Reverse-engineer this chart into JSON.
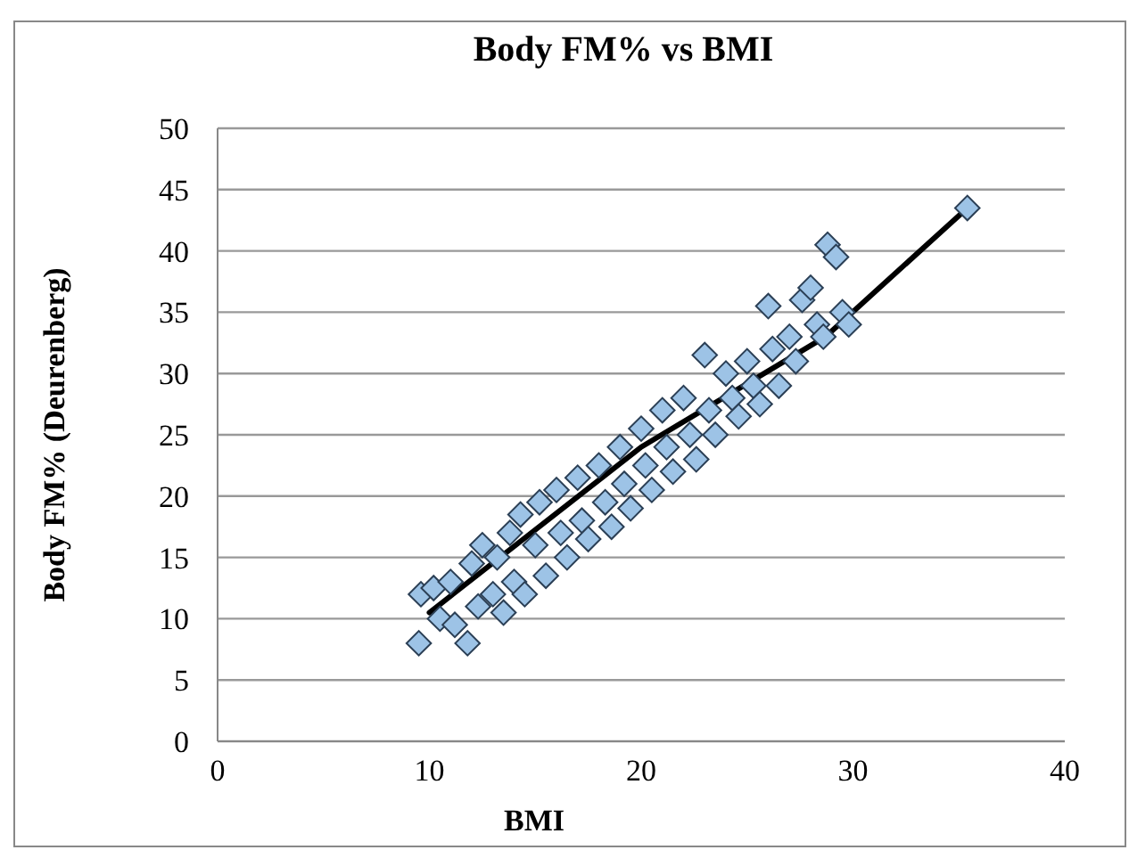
{
  "chart_data": {
    "type": "scatter",
    "title": "Body FM% vs BMI",
    "xlabel": "BMI",
    "ylabel": "Body FM% (Deurenberg)",
    "xlim": [
      0,
      40
    ],
    "xticks": [
      0,
      10,
      20,
      30,
      40
    ],
    "ylim": [
      0,
      50
    ],
    "yticks": [
      0,
      5,
      10,
      15,
      20,
      25,
      30,
      35,
      40,
      45,
      50
    ],
    "grid": "y",
    "series": [
      {
        "type": "line",
        "marker": "none",
        "color": "#000000",
        "x": [
          10,
          20,
          28.7,
          35.4
        ],
        "values": [
          10.5,
          24,
          33,
          43.5
        ]
      },
      {
        "marker": "diamond",
        "color": "#9dc3e6",
        "x": [
          9.5,
          9.6,
          10.2,
          10.5,
          11,
          11.2,
          11.8,
          12,
          12.3,
          12.5,
          13,
          13.2,
          13.5,
          13.8,
          14,
          14.3,
          14.5,
          15,
          15.2,
          15.5,
          16,
          16.2,
          16.5,
          17,
          17.2,
          17.5,
          18,
          18.3,
          18.6,
          19,
          19.2,
          19.5,
          20,
          20.2,
          20.5,
          21,
          21.2,
          21.5,
          22,
          22.3,
          22.6,
          23,
          23.2,
          23.5,
          24,
          24.3,
          24.6,
          25,
          25.3,
          25.6,
          26,
          26.2,
          26.5,
          27,
          27.3,
          27.6,
          28,
          28.3,
          28.6,
          28.8,
          29.2,
          29.5,
          29.8,
          35.4
        ],
        "values": [
          8,
          12,
          12.5,
          10,
          13,
          9.5,
          8,
          14.5,
          11,
          16,
          12,
          15,
          10.5,
          17,
          13,
          18.5,
          12,
          16,
          19.5,
          13.5,
          20.5,
          17,
          15,
          21.5,
          18,
          16.5,
          22.5,
          19.5,
          17.5,
          24,
          21,
          19,
          25.5,
          22.5,
          20.5,
          27,
          24,
          22,
          28,
          25,
          23,
          31.5,
          27,
          25,
          30,
          28,
          26.5,
          31,
          29,
          27.5,
          35.5,
          32,
          29,
          33,
          31,
          36,
          37,
          34,
          33,
          40.5,
          39.5,
          35,
          34,
          43.5
        ]
      }
    ]
  }
}
